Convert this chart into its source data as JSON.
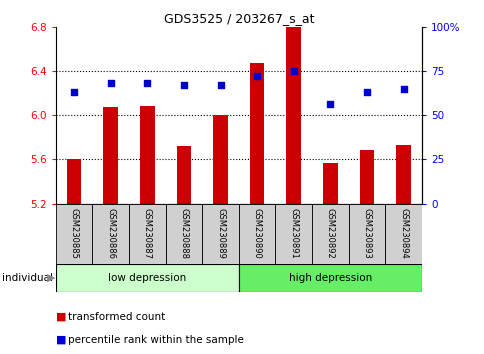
{
  "title": "GDS3525 / 203267_s_at",
  "samples": [
    "GSM230885",
    "GSM230886",
    "GSM230887",
    "GSM230888",
    "GSM230889",
    "GSM230890",
    "GSM230891",
    "GSM230892",
    "GSM230893",
    "GSM230894"
  ],
  "transformed_count": [
    5.6,
    6.07,
    6.08,
    5.72,
    6.0,
    6.47,
    6.8,
    5.57,
    5.68,
    5.73
  ],
  "percentile_rank": [
    63,
    68,
    68,
    67,
    67,
    72,
    75,
    56,
    63,
    65
  ],
  "ylim_left": [
    5.2,
    6.8
  ],
  "ylim_right": [
    0,
    100
  ],
  "yticks_left": [
    5.2,
    5.6,
    6.0,
    6.4,
    6.8
  ],
  "yticks_right": [
    0,
    25,
    50,
    75,
    100
  ],
  "group_labels": [
    "low depression",
    "high depression"
  ],
  "group_colors": [
    "#ccffcc",
    "#66ee66"
  ],
  "bar_color": "#cc0000",
  "dot_color": "#0000cc",
  "bar_bottom": 5.2,
  "legend_items": [
    "transformed count",
    "percentile rank within the sample"
  ],
  "legend_colors": [
    "#cc0000",
    "#0000cc"
  ],
  "individual_label": "individual",
  "bar_width": 0.4,
  "dot_size": 14
}
